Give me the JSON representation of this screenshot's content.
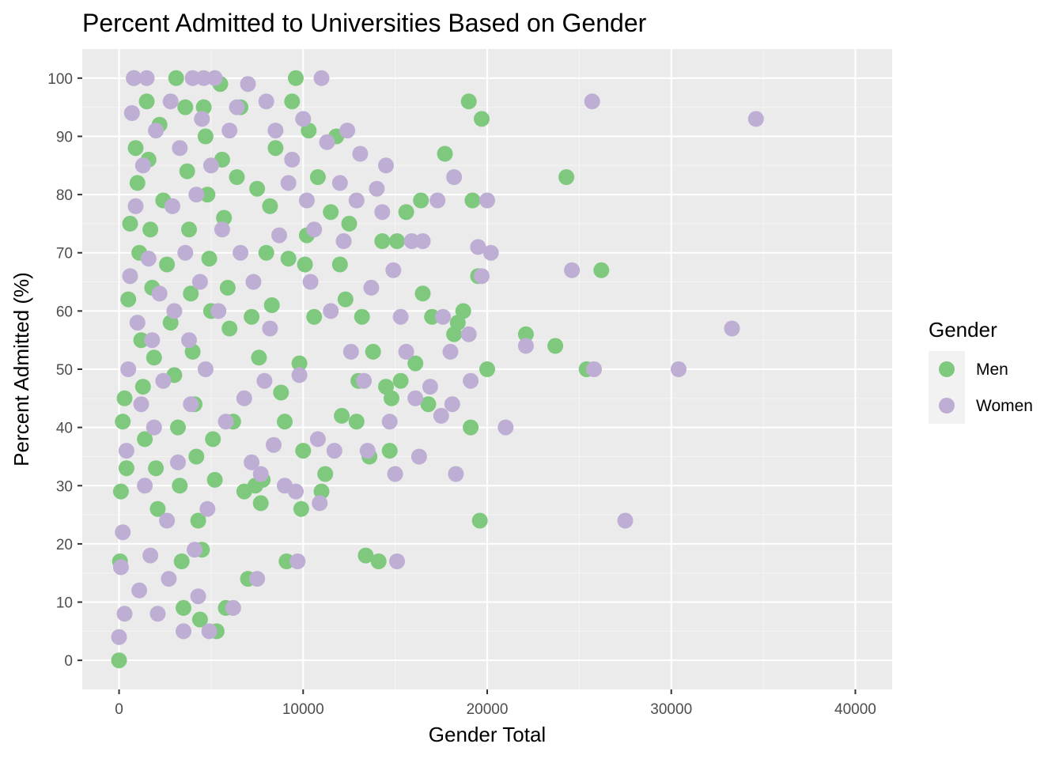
{
  "chart_data": {
    "type": "scatter",
    "title": "Percent Admitted to Universities Based on Gender",
    "xlabel": "Gender Total",
    "ylabel": "Percent Admitted (%)",
    "xlim": [
      -2000,
      42000
    ],
    "ylim": [
      -5,
      105
    ],
    "x_ticks": [
      0,
      10000,
      20000,
      30000,
      40000
    ],
    "x_tick_labels": [
      "0",
      "10000",
      "20000",
      "30000",
      "40000"
    ],
    "y_ticks": [
      0,
      10,
      20,
      30,
      40,
      50,
      60,
      70,
      80,
      90,
      100
    ],
    "y_tick_labels": [
      "0",
      "10",
      "20",
      "30",
      "40",
      "50",
      "60",
      "70",
      "80",
      "90",
      "100"
    ],
    "grid": true,
    "legend_placement": "right",
    "legend": {
      "title": "Gender",
      "entries": [
        "Men",
        "Women"
      ]
    },
    "series": [
      {
        "name": "Men",
        "color": "#7fc97f",
        "points": [
          [
            0,
            0
          ],
          [
            50,
            17
          ],
          [
            100,
            29
          ],
          [
            200,
            41
          ],
          [
            300,
            45
          ],
          [
            400,
            33
          ],
          [
            500,
            62
          ],
          [
            600,
            75
          ],
          [
            800,
            100
          ],
          [
            900,
            88
          ],
          [
            1000,
            82
          ],
          [
            1100,
            70
          ],
          [
            1200,
            55
          ],
          [
            1300,
            47
          ],
          [
            1400,
            38
          ],
          [
            1500,
            96
          ],
          [
            1600,
            86
          ],
          [
            1700,
            74
          ],
          [
            1800,
            64
          ],
          [
            1900,
            52
          ],
          [
            2000,
            33
          ],
          [
            2100,
            26
          ],
          [
            2200,
            92
          ],
          [
            2400,
            79
          ],
          [
            2600,
            68
          ],
          [
            2800,
            58
          ],
          [
            3000,
            49
          ],
          [
            3100,
            100
          ],
          [
            3200,
            40
          ],
          [
            3300,
            30
          ],
          [
            3400,
            17
          ],
          [
            3500,
            9
          ],
          [
            3600,
            95
          ],
          [
            3700,
            84
          ],
          [
            3800,
            74
          ],
          [
            3900,
            63
          ],
          [
            4000,
            53
          ],
          [
            4100,
            44
          ],
          [
            4200,
            35
          ],
          [
            4300,
            24
          ],
          [
            4400,
            7
          ],
          [
            4500,
            19
          ],
          [
            4600,
            95
          ],
          [
            4700,
            90
          ],
          [
            4800,
            80
          ],
          [
            4900,
            69
          ],
          [
            5000,
            60
          ],
          [
            5100,
            38
          ],
          [
            5200,
            31
          ],
          [
            5300,
            5
          ],
          [
            5500,
            99
          ],
          [
            5600,
            86
          ],
          [
            5700,
            76
          ],
          [
            5800,
            9
          ],
          [
            5900,
            64
          ],
          [
            6000,
            57
          ],
          [
            6200,
            41
          ],
          [
            6400,
            83
          ],
          [
            6600,
            95
          ],
          [
            6800,
            29
          ],
          [
            7000,
            14
          ],
          [
            7200,
            59
          ],
          [
            7400,
            30
          ],
          [
            7500,
            81
          ],
          [
            7600,
            52
          ],
          [
            7700,
            27
          ],
          [
            7800,
            31
          ],
          [
            8000,
            70
          ],
          [
            8200,
            78
          ],
          [
            8300,
            61
          ],
          [
            8500,
            88
          ],
          [
            8800,
            46
          ],
          [
            9000,
            41
          ],
          [
            9100,
            17
          ],
          [
            9200,
            69
          ],
          [
            9400,
            96
          ],
          [
            9600,
            100
          ],
          [
            9800,
            51
          ],
          [
            9900,
            26
          ],
          [
            10000,
            36
          ],
          [
            10100,
            68
          ],
          [
            10200,
            73
          ],
          [
            10300,
            91
          ],
          [
            10600,
            59
          ],
          [
            10800,
            83
          ],
          [
            11000,
            29
          ],
          [
            11200,
            32
          ],
          [
            11500,
            77
          ],
          [
            11800,
            90
          ],
          [
            12000,
            68
          ],
          [
            12100,
            42
          ],
          [
            12300,
            62
          ],
          [
            12500,
            75
          ],
          [
            12900,
            41
          ],
          [
            13000,
            48
          ],
          [
            13200,
            59
          ],
          [
            13400,
            18
          ],
          [
            13600,
            35
          ],
          [
            13800,
            53
          ],
          [
            14100,
            17
          ],
          [
            14300,
            72
          ],
          [
            14500,
            47
          ],
          [
            14700,
            36
          ],
          [
            14800,
            45
          ],
          [
            15100,
            72
          ],
          [
            15300,
            48
          ],
          [
            15600,
            77
          ],
          [
            16100,
            51
          ],
          [
            16400,
            79
          ],
          [
            16500,
            63
          ],
          [
            16800,
            44
          ],
          [
            17000,
            59
          ],
          [
            17700,
            87
          ],
          [
            18200,
            56
          ],
          [
            18400,
            58
          ],
          [
            18700,
            60
          ],
          [
            19000,
            96
          ],
          [
            19100,
            40
          ],
          [
            19200,
            79
          ],
          [
            19500,
            66
          ],
          [
            19600,
            24
          ],
          [
            19700,
            93
          ],
          [
            20000,
            50
          ],
          [
            22100,
            56
          ],
          [
            23700,
            54
          ],
          [
            24300,
            83
          ],
          [
            25400,
            50
          ],
          [
            26200,
            67
          ]
        ]
      },
      {
        "name": "Women",
        "color": "#beaed4",
        "points": [
          [
            0,
            4
          ],
          [
            100,
            16
          ],
          [
            200,
            22
          ],
          [
            300,
            8
          ],
          [
            400,
            36
          ],
          [
            500,
            50
          ],
          [
            600,
            66
          ],
          [
            700,
            94
          ],
          [
            800,
            100
          ],
          [
            900,
            78
          ],
          [
            1000,
            58
          ],
          [
            1100,
            12
          ],
          [
            1200,
            44
          ],
          [
            1300,
            85
          ],
          [
            1400,
            30
          ],
          [
            1500,
            100
          ],
          [
            1600,
            69
          ],
          [
            1700,
            18
          ],
          [
            1800,
            55
          ],
          [
            1900,
            40
          ],
          [
            2000,
            91
          ],
          [
            2100,
            8
          ],
          [
            2200,
            63
          ],
          [
            2400,
            48
          ],
          [
            2600,
            24
          ],
          [
            2700,
            14
          ],
          [
            2800,
            96
          ],
          [
            2900,
            78
          ],
          [
            3000,
            60
          ],
          [
            3200,
            34
          ],
          [
            3300,
            88
          ],
          [
            3500,
            5
          ],
          [
            3600,
            70
          ],
          [
            3800,
            55
          ],
          [
            3900,
            44
          ],
          [
            4000,
            100
          ],
          [
            4100,
            19
          ],
          [
            4200,
            80
          ],
          [
            4300,
            11
          ],
          [
            4400,
            65
          ],
          [
            4500,
            93
          ],
          [
            4600,
            100
          ],
          [
            4700,
            50
          ],
          [
            4800,
            26
          ],
          [
            4900,
            5
          ],
          [
            5000,
            85
          ],
          [
            5200,
            100
          ],
          [
            5400,
            60
          ],
          [
            5600,
            74
          ],
          [
            5800,
            41
          ],
          [
            6000,
            91
          ],
          [
            6200,
            9
          ],
          [
            6400,
            95
          ],
          [
            6600,
            70
          ],
          [
            6800,
            45
          ],
          [
            7000,
            99
          ],
          [
            7200,
            34
          ],
          [
            7300,
            65
          ],
          [
            7500,
            14
          ],
          [
            7700,
            32
          ],
          [
            7900,
            48
          ],
          [
            8000,
            96
          ],
          [
            8200,
            57
          ],
          [
            8400,
            37
          ],
          [
            8500,
            91
          ],
          [
            8700,
            73
          ],
          [
            9000,
            30
          ],
          [
            9200,
            82
          ],
          [
            9400,
            86
          ],
          [
            9600,
            29
          ],
          [
            9700,
            17
          ],
          [
            9800,
            49
          ],
          [
            10000,
            93
          ],
          [
            10200,
            79
          ],
          [
            10400,
            65
          ],
          [
            10600,
            74
          ],
          [
            10800,
            38
          ],
          [
            10900,
            27
          ],
          [
            11000,
            100
          ],
          [
            11300,
            89
          ],
          [
            11500,
            60
          ],
          [
            11700,
            36
          ],
          [
            12000,
            82
          ],
          [
            12200,
            72
          ],
          [
            12400,
            91
          ],
          [
            12600,
            53
          ],
          [
            12900,
            79
          ],
          [
            13100,
            87
          ],
          [
            13300,
            48
          ],
          [
            13500,
            36
          ],
          [
            13700,
            64
          ],
          [
            14000,
            81
          ],
          [
            14300,
            77
          ],
          [
            14500,
            85
          ],
          [
            14700,
            41
          ],
          [
            14900,
            67
          ],
          [
            15000,
            32
          ],
          [
            15100,
            17
          ],
          [
            15300,
            59
          ],
          [
            15600,
            53
          ],
          [
            15900,
            72
          ],
          [
            16100,
            45
          ],
          [
            16300,
            35
          ],
          [
            16500,
            72
          ],
          [
            16900,
            47
          ],
          [
            17300,
            79
          ],
          [
            17500,
            42
          ],
          [
            17600,
            59
          ],
          [
            18000,
            53
          ],
          [
            18100,
            44
          ],
          [
            18200,
            83
          ],
          [
            18300,
            32
          ],
          [
            19000,
            56
          ],
          [
            19100,
            48
          ],
          [
            19500,
            71
          ],
          [
            19700,
            66
          ],
          [
            20000,
            79
          ],
          [
            20200,
            70
          ],
          [
            21000,
            40
          ],
          [
            22100,
            54
          ],
          [
            24600,
            67
          ],
          [
            25700,
            96
          ],
          [
            25800,
            50
          ],
          [
            27500,
            24
          ],
          [
            30400,
            50
          ],
          [
            33300,
            57
          ],
          [
            34600,
            93
          ]
        ]
      }
    ]
  }
}
